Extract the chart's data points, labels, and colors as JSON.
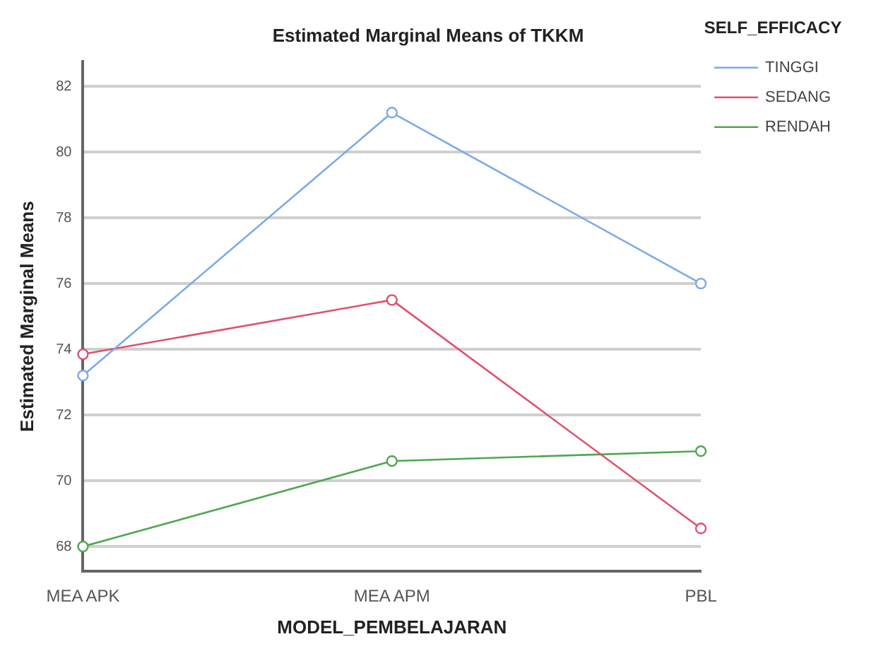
{
  "chart_data": {
    "type": "line",
    "title": "Estimated Marginal Means of TKKM",
    "xlabel": "MODEL_PEMBELAJARAN",
    "ylabel": "Estimated Marginal Means",
    "legend_title": "SELF_EFFICACY",
    "categories": [
      "MEA APK",
      "MEA APM",
      "PBL"
    ],
    "series": [
      {
        "name": "TINGGI",
        "color": "#7aaae8",
        "values": [
          73.2,
          81.2,
          76.0
        ]
      },
      {
        "name": "SEDANG",
        "color": "#e0506e",
        "values": [
          73.85,
          75.5,
          68.55
        ]
      },
      {
        "name": "RENDAH",
        "color": "#4ea84e",
        "values": [
          68.0,
          70.6,
          70.9
        ]
      }
    ],
    "ylim": [
      67.25,
      82.75
    ],
    "yticks": [
      68,
      70,
      72,
      74,
      76,
      78,
      80,
      82
    ],
    "grid": "y",
    "legend": "top right",
    "marker": "circle",
    "line_style": "solid"
  }
}
